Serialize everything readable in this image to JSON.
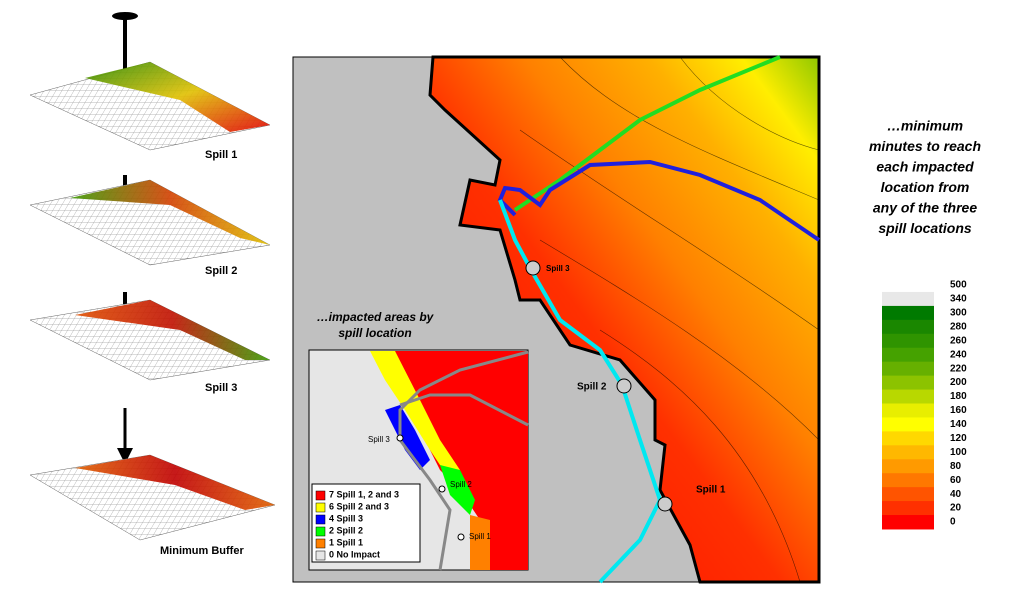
{
  "surfaces": [
    {
      "label": "Spill 1"
    },
    {
      "label": "Spill 2"
    },
    {
      "label": "Spill 3"
    },
    {
      "label": "Minimum Buffer"
    }
  ],
  "map": {
    "spills": [
      {
        "label": "Spill 3"
      },
      {
        "label": "Spill 2"
      },
      {
        "label": "Spill 1"
      }
    ]
  },
  "inset": {
    "title": [
      "…impacted areas by",
      "spill location"
    ],
    "spills": [
      {
        "label": "Spill 3"
      },
      {
        "label": "Spill 2"
      },
      {
        "label": "Spill 1"
      }
    ],
    "legend": [
      {
        "label": "7 Spill 1, 2 and 3",
        "color": "#ff0000"
      },
      {
        "label": "6 Spill 2 and 3",
        "color": "#ffff00"
      },
      {
        "label": "4 Spill 3",
        "color": "#0000ff"
      },
      {
        "label": "2 Spill 2",
        "color": "#00ff00"
      },
      {
        "label": "1 Spill 1",
        "color": "#ff8000"
      },
      {
        "label": "0 No Impact",
        "color": "#e6e6e6"
      }
    ]
  },
  "caption": [
    "…minimum",
    "minutes to reach",
    "each impacted",
    "location from",
    "any of the three",
    "spill locations"
  ],
  "color_legend": {
    "ticks": [
      500,
      340,
      300,
      280,
      260,
      240,
      220,
      200,
      180,
      160,
      140,
      120,
      100,
      80,
      60,
      40,
      20,
      0
    ],
    "colors": [
      "#e8e8e8",
      "#007a00",
      "#1a8700",
      "#2f9400",
      "#45a200",
      "#66b000",
      "#8cc300",
      "#b8d800",
      "#e8ee00",
      "#ffff00",
      "#ffd800",
      "#ffb800",
      "#ff9a00",
      "#ff7800",
      "#ff5400",
      "#ff3000",
      "#ff0000"
    ]
  }
}
